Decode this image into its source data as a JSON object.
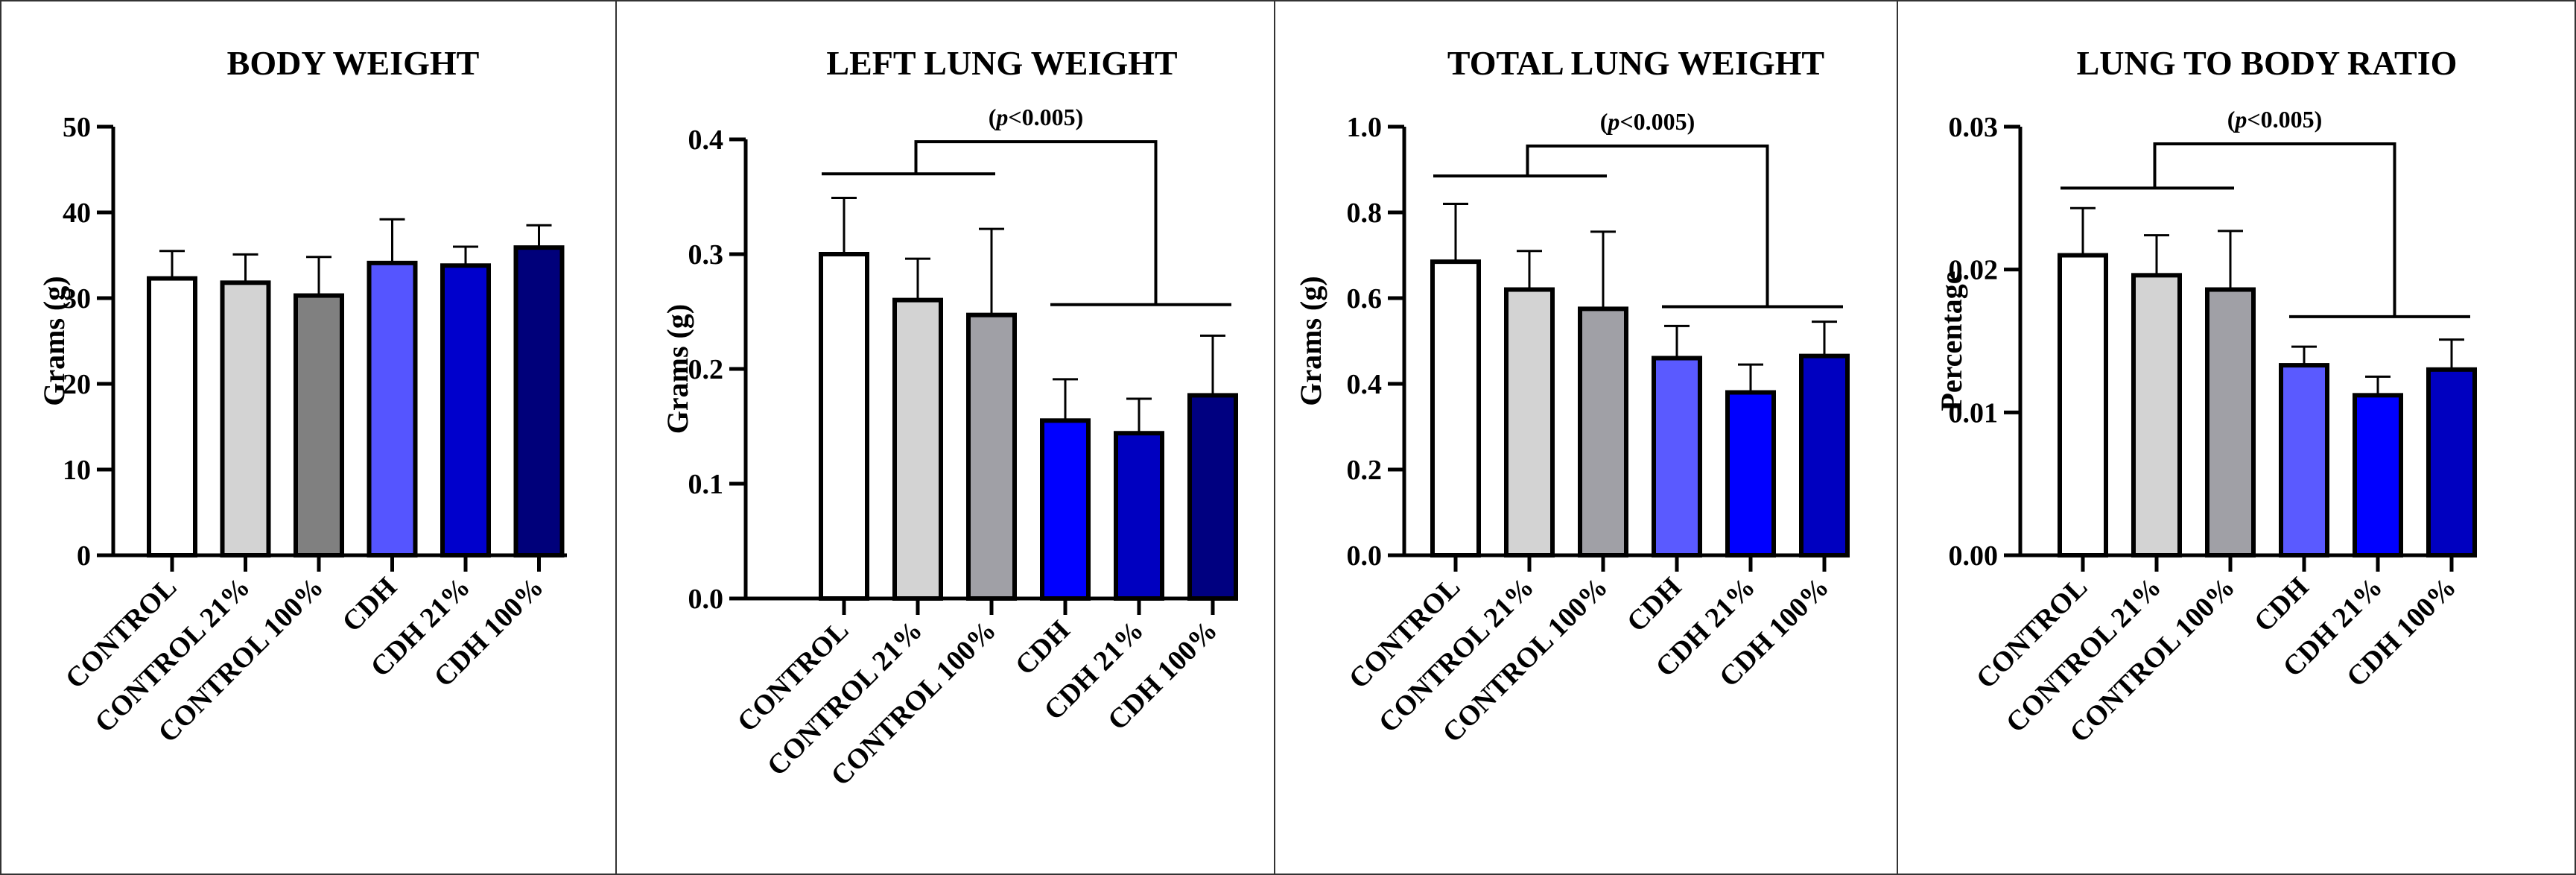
{
  "chart_data": [
    {
      "type": "bar",
      "title": "BODY WEIGHT",
      "ylabel": "Grams (g)",
      "xlabel": "",
      "ylim": [
        0,
        50
      ],
      "yticks": [
        "0",
        "10",
        "20",
        "30",
        "40",
        "50"
      ],
      "ytick_values": [
        0,
        10,
        20,
        30,
        40,
        50
      ],
      "categories": [
        "CONTROL",
        "CONTROL 21%",
        "CONTROL 100%",
        "CDH",
        "CDH 21%",
        "CDH 100%"
      ],
      "values": [
        32.3,
        31.8,
        30.3,
        34.1,
        33.8,
        35.9
      ],
      "errors": [
        3.2,
        3.3,
        4.5,
        5.1,
        2.2,
        2.6
      ],
      "colors": [
        "#ffffff",
        "#d3d3d3",
        "#808080",
        "#5555ff",
        "#0000cc",
        "#00007a"
      ],
      "bracket": null
    },
    {
      "type": "bar",
      "title": "LEFT LUNG WEIGHT",
      "ylabel": "Grams (g)",
      "xlabel": "",
      "ylim": [
        0,
        0.4
      ],
      "yticks": [
        "0.0",
        "0.1",
        "0.2",
        "0.3",
        "0.4"
      ],
      "ytick_values": [
        0,
        0.1,
        0.2,
        0.3,
        0.4
      ],
      "categories": [
        "CONTROL",
        "CONTROL 21%",
        "CONTROL 100%",
        "CDH",
        "CDH 21%",
        "CDH 100%"
      ],
      "values": [
        0.3,
        0.26,
        0.247,
        0.155,
        0.144,
        0.177
      ],
      "errors": [
        0.049,
        0.036,
        0.075,
        0.036,
        0.03,
        0.052
      ],
      "colors": [
        "#ffffff",
        "#d3d3d3",
        "#a0a0a6",
        "#0000ff",
        "#0000c0",
        "#000080"
      ],
      "bracket": {
        "label_pre": "(",
        "label_italic": "p",
        "label_post": "<0.005)",
        "left_group": [
          0,
          2
        ],
        "right_group": [
          3,
          5
        ],
        "left_y": 0.37,
        "right_y": 0.256,
        "top_y": 0.398
      }
    },
    {
      "type": "bar",
      "title": "TOTAL LUNG WEIGHT",
      "ylabel": "Grams (g)",
      "xlabel": "",
      "ylim": [
        0,
        1.0
      ],
      "yticks": [
        "0.0",
        "0.2",
        "0.4",
        "0.6",
        "0.8",
        "1.0"
      ],
      "ytick_values": [
        0,
        0.2,
        0.4,
        0.6,
        0.8,
        1.0
      ],
      "categories": [
        "CONTROL",
        "CONTROL 21%",
        "CONTROL 100%",
        "CDH",
        "CDH 21%",
        "CDH 100%"
      ],
      "values": [
        0.685,
        0.62,
        0.575,
        0.46,
        0.38,
        0.465
      ],
      "errors": [
        0.135,
        0.09,
        0.18,
        0.075,
        0.065,
        0.08
      ],
      "colors": [
        "#ffffff",
        "#d3d3d3",
        "#a0a0a6",
        "#5a5aff",
        "#0000ff",
        "#0000c0"
      ],
      "bracket": {
        "label_pre": "(",
        "label_italic": "p",
        "label_post": "<0.005)",
        "left_group": [
          0,
          2
        ],
        "right_group": [
          3,
          5
        ],
        "left_y": 0.885,
        "right_y": 0.58,
        "top_y": 0.955
      }
    },
    {
      "type": "bar",
      "title": "LUNG TO BODY RATIO",
      "ylabel": "Percentage",
      "xlabel": "",
      "ylim": [
        0,
        0.03
      ],
      "yticks": [
        "0.00",
        "0.01",
        "0.02",
        "0.03"
      ],
      "ytick_values": [
        0,
        0.01,
        0.02,
        0.03
      ],
      "categories": [
        "CONTROL",
        "CONTROL 21%",
        "CONTROL 100%",
        "CDH",
        "CDH 21%",
        "CDH 100%"
      ],
      "values": [
        0.021,
        0.0196,
        0.0186,
        0.0133,
        0.0112,
        0.013
      ],
      "errors": [
        0.0033,
        0.0028,
        0.0041,
        0.0013,
        0.0013,
        0.0021
      ],
      "colors": [
        "#ffffff",
        "#d3d3d3",
        "#a0a0a6",
        "#5a5aff",
        "#0000ff",
        "#0000c0"
      ],
      "bracket": {
        "label_pre": "(",
        "label_italic": "p",
        "label_post": "<0.005)",
        "left_group": [
          0,
          2
        ],
        "right_group": [
          3,
          5
        ],
        "left_y": 0.0257,
        "right_y": 0.0167,
        "top_y": 0.0288
      }
    }
  ]
}
